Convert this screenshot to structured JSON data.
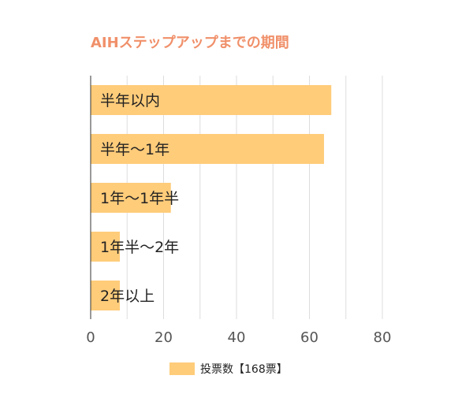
{
  "chart_data": {
    "type": "bar",
    "orientation": "horizontal",
    "title": "AIHステップアップまでの期間",
    "categories": [
      "半年以内",
      "半年～1年",
      "1年～1年半",
      "1年半～2年",
      "2年以上"
    ],
    "series": [
      {
        "name": "投票数【168票】",
        "values": [
          66,
          64,
          22,
          8,
          8
        ]
      }
    ],
    "xlim": [
      0,
      80
    ],
    "xticks": [
      "0",
      "20",
      "40",
      "60",
      "80"
    ],
    "grid": true,
    "legend_position": "bottom",
    "colors": {
      "title": "#f0906a",
      "bar": "#ffcc7a",
      "grid": "#dddddd",
      "axis": "#333333",
      "tick_text": "#555555",
      "label_text": "#222222"
    }
  }
}
